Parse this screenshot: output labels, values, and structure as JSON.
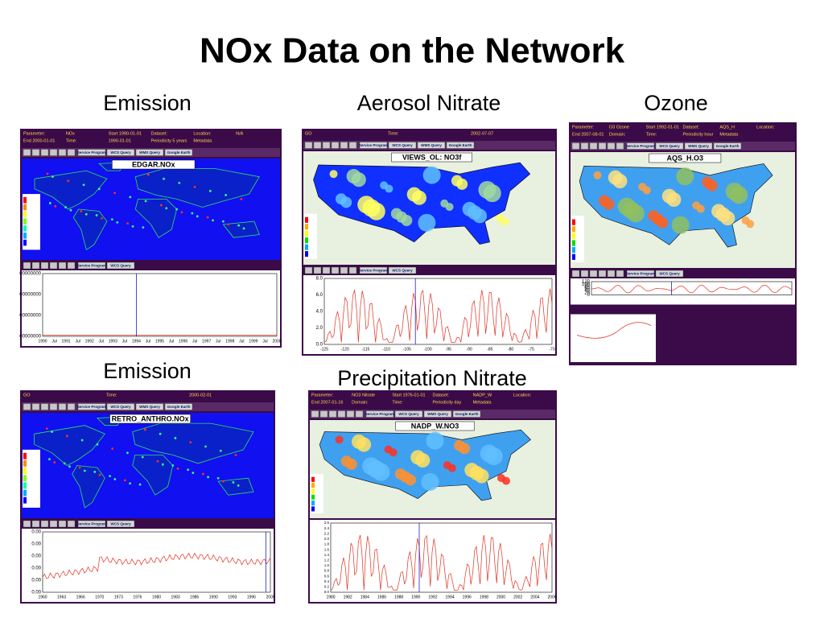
{
  "title": "NOx Data on the Network",
  "captions": [
    "Emission",
    "Aerosol Nitrate",
    "Ozone",
    "Emission",
    "Precipitation Nitrate"
  ],
  "panels": [
    {
      "header": [
        "Parameter:",
        "NOx",
        "Start 1990-01-01",
        "Dataset:",
        "Location:",
        "N/A",
        "End 2000-01-01",
        "Time:",
        "1990-01-01",
        "Periodicity 5 years",
        "Metadata"
      ],
      "buttons": [
        "Service Program",
        "WCS Query",
        "WMS Query",
        "Google Earth"
      ],
      "map_title": "EDGAR.NOx",
      "plot_buttons": [
        "Service Program",
        "WCS Query"
      ],
      "x_labels": [
        "1990",
        "Jul",
        "1991",
        "Jul",
        "1992",
        "Jul",
        "1993",
        "Jul",
        "1994",
        "Jul",
        "1995",
        "Jul",
        "1996",
        "Jul",
        "1997",
        "Jul",
        "1998",
        "Jul",
        "1999",
        "Jul",
        "2000"
      ],
      "y_labels": [
        "00000000",
        "00000000",
        "00000000",
        "00000000"
      ]
    },
    {
      "header": [
        "GO",
        "Time:",
        "2002-07-07"
      ],
      "buttons": [
        "Service Program",
        "WCS Query",
        "WMS Query",
        "Google Earth"
      ],
      "map_title": "VIEWS_OL: NO3f",
      "plot_buttons": [
        "Service Program",
        "WCS Query"
      ],
      "x_labels": [
        "-125",
        "-120",
        "-115",
        "-110",
        "-105",
        "-100",
        "-95",
        "-90",
        "-85",
        "-80",
        "-75",
        "-70"
      ],
      "y_labels": [
        "0.0",
        "2.0",
        "4.0",
        "6.0",
        "8.0"
      ]
    },
    {
      "header": [
        "Parameter:",
        "O3 Ozone",
        "Start 1992-01-01",
        "Dataset:",
        "AQS_H",
        "Location:",
        "End 2007-08-01",
        "Domain:",
        "Time:",
        "Periodicity hour",
        "Metadata"
      ],
      "buttons": [
        "Service Program",
        "WCS Query",
        "WMS Query",
        "Google Earth"
      ],
      "map_title": "AQS_H.O3",
      "plot_buttons": [
        "Service Program",
        "WCS Query"
      ],
      "x_labels": [],
      "y_labels": [
        "0",
        "20",
        "40",
        "60",
        "80",
        "100",
        "120"
      ]
    },
    {
      "header": [
        "GO",
        "Time:",
        "2000-02-01"
      ],
      "buttons": [
        "Service Program",
        "WCS Query",
        "WMS Query",
        "Google Earth"
      ],
      "map_title": "RETRO_ANTHRO.NOx",
      "plot_buttons": [
        "Service Program",
        "WCS Query"
      ],
      "x_labels": [
        "1960",
        "1963",
        "1966",
        "1970",
        "1973",
        "1976",
        "1980",
        "1983",
        "1986",
        "1990",
        "1993",
        "1996",
        "2000"
      ],
      "y_labels": [
        "0.00",
        "0.00",
        "0.00",
        "0.00",
        "0.00",
        "0.00"
      ]
    },
    {
      "header": [
        "Parameter:",
        "NO3 Nitrate",
        "Start 1976-01-01",
        "Dataset:",
        "NADP_W",
        "Location:",
        "End 2007-01-16",
        "Domain:",
        "Time:",
        "Periodicity day",
        "Metadata"
      ],
      "buttons": [
        "Service Program",
        "WCS Query",
        "WMS Query",
        "Google Earth"
      ],
      "map_title": "NADP_W.NO3",
      "plot_buttons": [],
      "x_labels": [
        "1980",
        "1982",
        "1984",
        "1986",
        "1988",
        "1990",
        "1992",
        "1994",
        "1996",
        "1998",
        "2000",
        "2002",
        "2004",
        "2006"
      ],
      "y_labels": [
        "0.0",
        "0.2",
        "0.4",
        "0.6",
        "0.8",
        "1.0",
        "1.2",
        "1.4",
        "1.6",
        "1.8",
        "2.0",
        "2.2",
        "2.4",
        "2.6"
      ]
    }
  ]
}
